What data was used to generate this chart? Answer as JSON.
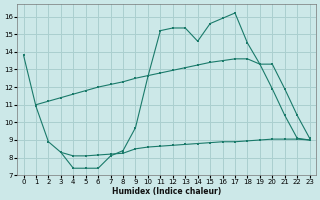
{
  "xlabel": "Humidex (Indice chaleur)",
  "xlim": [
    -0.5,
    23.5
  ],
  "ylim": [
    7,
    16.7
  ],
  "yticks": [
    7,
    8,
    9,
    10,
    11,
    12,
    13,
    14,
    15,
    16
  ],
  "xticks": [
    0,
    1,
    2,
    3,
    4,
    5,
    6,
    7,
    8,
    9,
    10,
    11,
    12,
    13,
    14,
    15,
    16,
    17,
    18,
    19,
    20,
    21,
    22,
    23
  ],
  "bg_color": "#cce8e8",
  "grid_color": "#aacfcf",
  "line_color": "#1a7a6a",
  "line1_x": [
    0,
    1,
    2,
    3,
    4,
    5,
    6,
    7,
    8,
    9,
    10,
    11,
    12,
    13,
    14,
    15,
    16,
    17,
    18,
    19,
    20,
    21,
    22,
    23
  ],
  "line1_y": [
    13.8,
    10.9,
    8.9,
    8.3,
    7.4,
    7.4,
    7.4,
    8.1,
    8.4,
    9.7,
    12.6,
    15.2,
    15.35,
    15.35,
    14.6,
    15.6,
    15.9,
    16.2,
    14.5,
    13.3,
    11.9,
    10.4,
    9.1,
    9.0
  ],
  "line2_x": [
    1,
    2,
    3,
    4,
    5,
    6,
    7,
    8,
    9,
    10,
    11,
    12,
    13,
    14,
    15,
    16,
    17,
    18,
    19,
    20,
    21,
    22,
    23
  ],
  "line2_y": [
    11.0,
    11.2,
    11.4,
    11.6,
    11.8,
    12.0,
    12.15,
    12.3,
    12.5,
    12.65,
    12.8,
    12.95,
    13.1,
    13.25,
    13.4,
    13.5,
    13.6,
    13.6,
    13.3,
    13.3,
    11.9,
    10.4,
    9.1
  ],
  "line3_x": [
    3,
    4,
    5,
    6,
    7,
    8,
    9,
    10,
    11,
    12,
    13,
    14,
    15,
    16,
    17,
    18,
    19,
    20,
    21,
    22,
    23
  ],
  "line3_y": [
    8.3,
    8.1,
    8.1,
    8.15,
    8.2,
    8.25,
    8.5,
    8.6,
    8.65,
    8.7,
    8.75,
    8.8,
    8.85,
    8.9,
    8.9,
    8.95,
    9.0,
    9.05,
    9.05,
    9.05,
    9.0
  ]
}
